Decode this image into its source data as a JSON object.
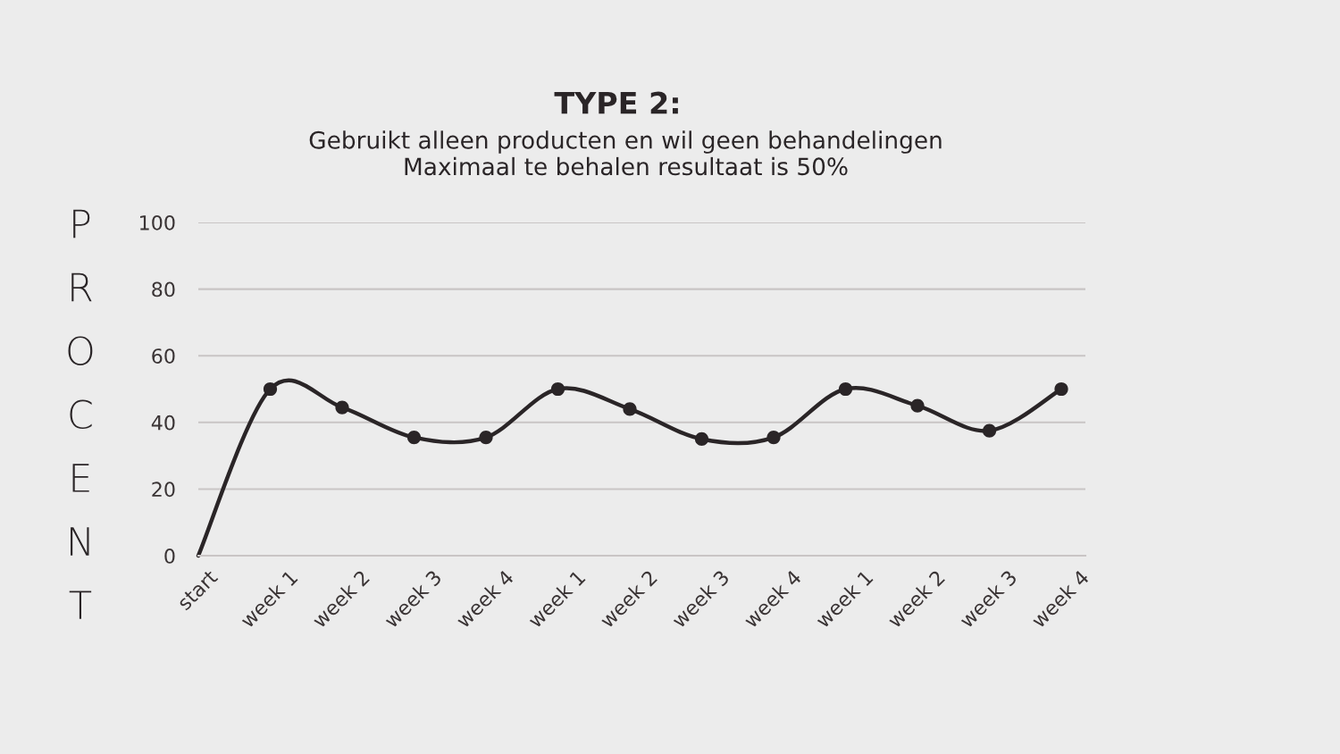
{
  "chart_data": {
    "type": "line",
    "title": "TYPE 2:",
    "subtitle": "Gebruikt alleen producten en wil geen behandelingen\nMaximaal te behalen resultaat is 50%",
    "ylabel": "PROCENT",
    "categories": [
      "start",
      "week 1",
      "week 2",
      "week 3",
      "week 4",
      "week 1",
      "week 2",
      "week 3",
      "week 4",
      "week 1",
      "week 2",
      "week 3",
      "week 4"
    ],
    "series": [
      {
        "type": "line",
        "color": "#2a2527",
        "values": [
          0,
          50,
          44.5,
          35.5,
          35.5,
          50,
          44,
          35,
          35.5,
          50,
          45,
          37.5,
          50
        ]
      },
      {
        "type": "scatter",
        "color": "#2a2527",
        "marker": "circle",
        "values": [
          null,
          50,
          44.5,
          35.5,
          35.5,
          50,
          44,
          35,
          35.5,
          50,
          45,
          37.5,
          50
        ]
      }
    ],
    "ylim": [
      0,
      100
    ],
    "yticks": [
      0,
      20,
      40,
      60,
      80,
      100
    ],
    "grid": "y"
  }
}
